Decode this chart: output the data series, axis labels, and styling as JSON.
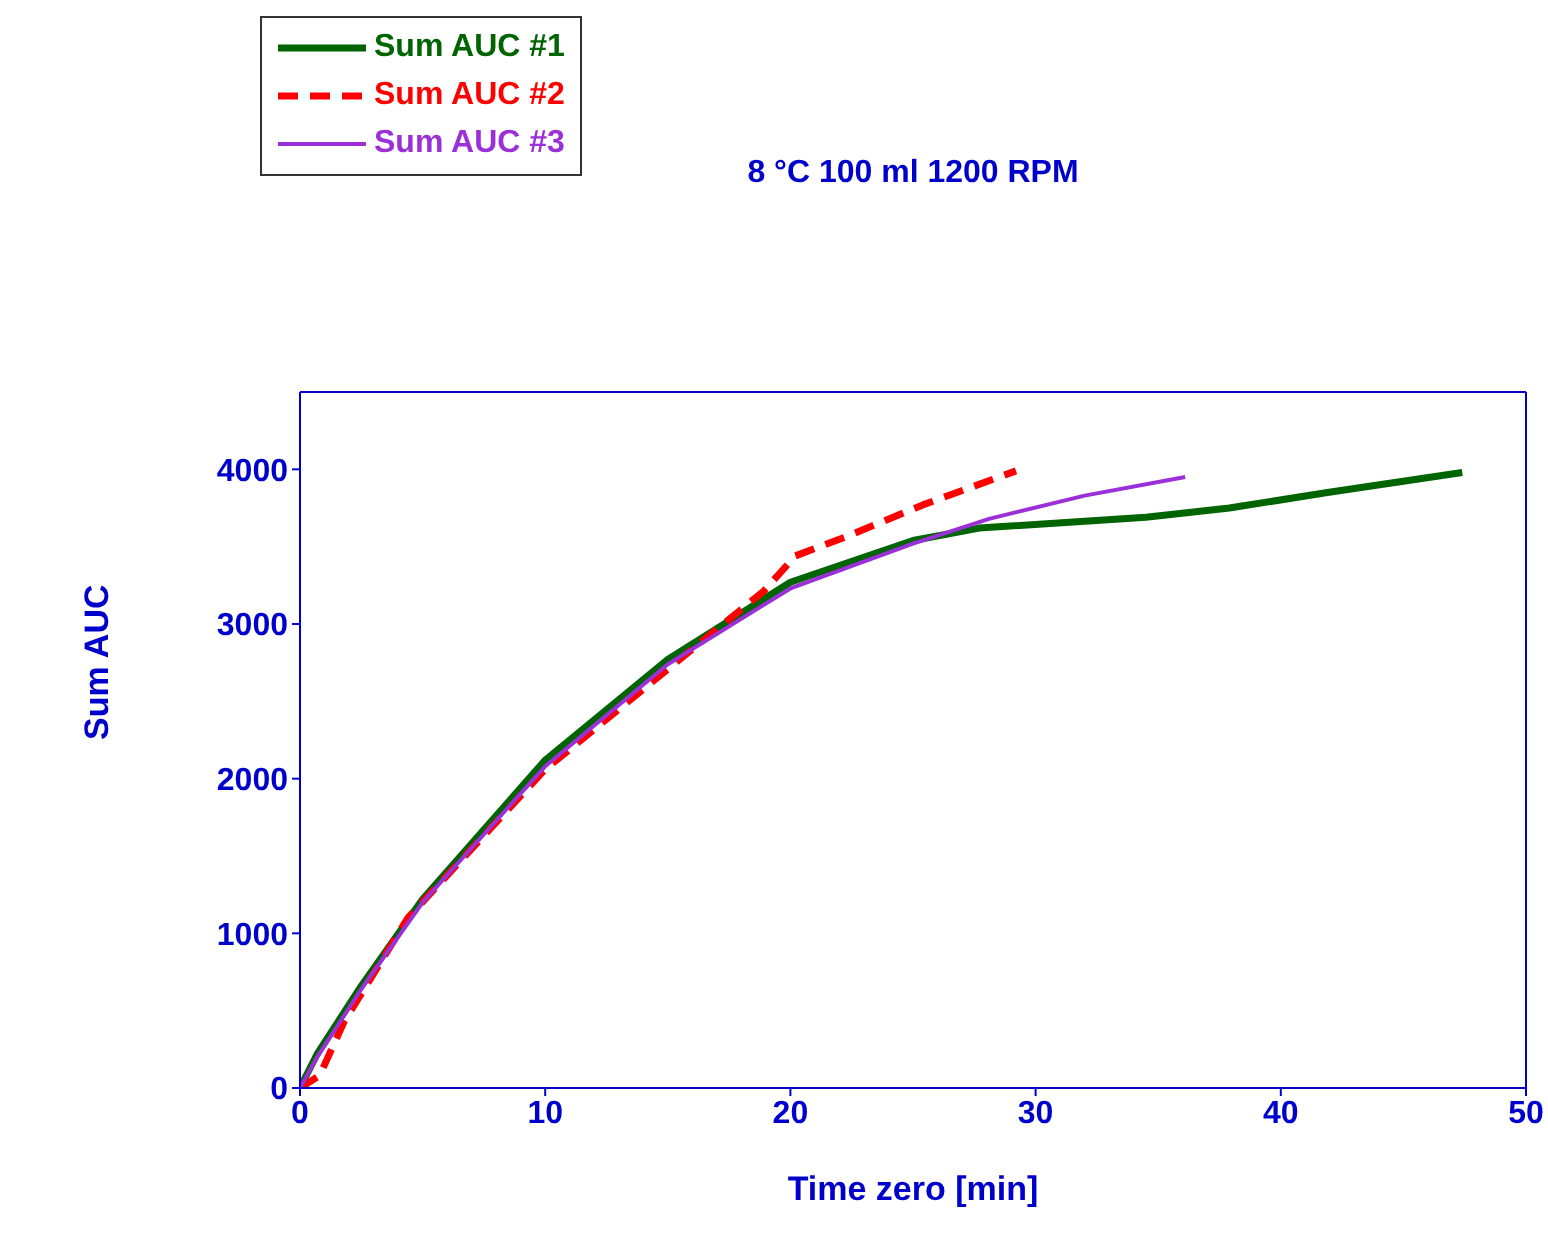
{
  "chart_data": {
    "type": "line",
    "title": "8 °C 100 ml 1200 RPM",
    "xlabel": "Time zero [min]",
    "ylabel": "Sum AUC",
    "xlim": [
      0,
      50
    ],
    "xticks": [
      0,
      10,
      20,
      30,
      40,
      50
    ],
    "ylim": [
      0,
      4500
    ],
    "yticks": [
      0,
      1000,
      2000,
      3000,
      4000
    ],
    "legend": "top left",
    "marker": "none",
    "series": [
      {
        "name": "Sum AUC #1",
        "color": "#006400",
        "line_style": "solid",
        "x": [
          0,
          0.7,
          2.5,
          5,
          10,
          15,
          20,
          25,
          27.7,
          34.5,
          37.9,
          41.9,
          47.4
        ],
        "values": [
          0,
          220,
          660,
          1220,
          2120,
          2770,
          3270,
          3540,
          3620,
          3690,
          3750,
          3850,
          3980
        ]
      },
      {
        "name": "Sum AUC #2",
        "color": "#ff0000",
        "line_style": "dashed",
        "x": [
          0,
          0.8,
          1.8,
          4.4,
          10,
          17.1,
          18.9,
          20.2,
          22.2,
          25.4,
          29.2
        ],
        "values": [
          0,
          80,
          430,
          1100,
          2060,
          2980,
          3210,
          3440,
          3560,
          3770,
          3990
        ]
      },
      {
        "name": "Sum AUC #3",
        "color": "#9b30d9",
        "line_style": "solid",
        "x": [
          0,
          0.7,
          2.5,
          5,
          10,
          15,
          20,
          25,
          28.1,
          32,
          36.1
        ],
        "values": [
          0,
          200,
          640,
          1200,
          2080,
          2740,
          3230,
          3520,
          3680,
          3830,
          3950
        ]
      }
    ]
  }
}
